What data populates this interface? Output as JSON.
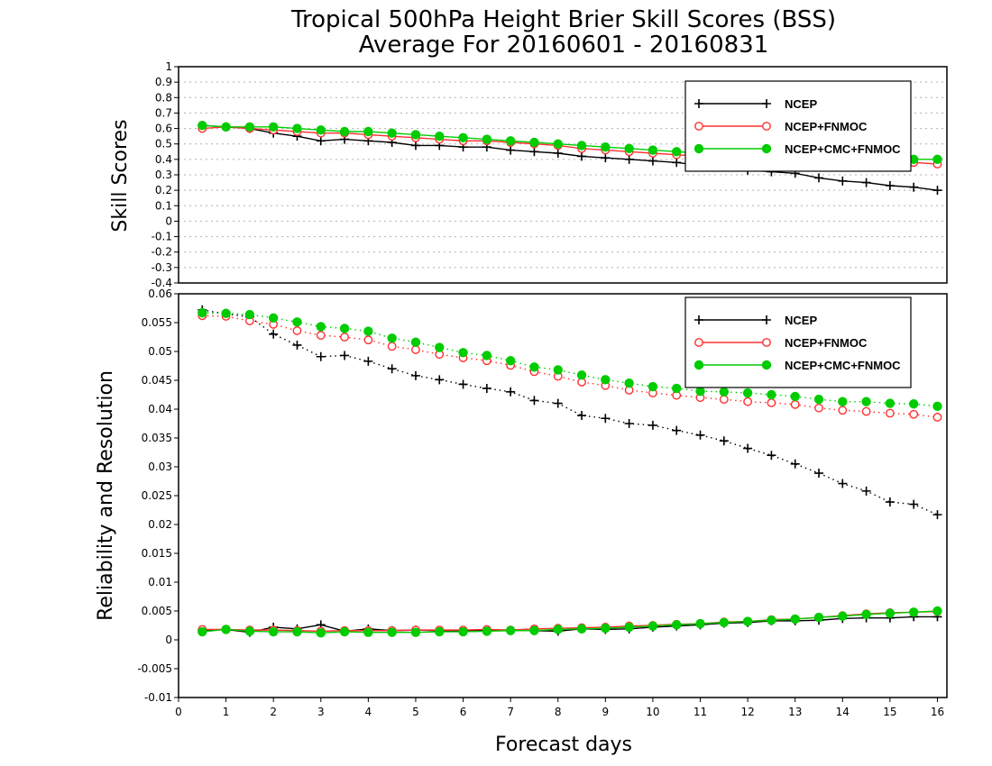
{
  "title_line1": "Tropical 500hPa Height Brier Skill Scores (BSS)",
  "title_line2": "Average For 20160601 - 20160831",
  "chart_data": [
    {
      "type": "line",
      "ylabel": "Skill Scores",
      "ylim": [
        -0.4,
        1.0
      ],
      "yticks": [
        "1",
        "0.9",
        "0.8",
        "0.7",
        "0.6",
        "0.5",
        "0.4",
        "0.3",
        "0.2",
        "0.1",
        "0",
        "-0.1",
        "-0.2",
        "-0.3",
        "-0.4"
      ],
      "xlim": [
        0,
        16.2
      ],
      "grid": true,
      "legend": "top-right",
      "x": [
        0.5,
        1,
        1.5,
        2,
        2.5,
        3,
        3.5,
        4,
        4.5,
        5,
        5.5,
        6,
        6.5,
        7,
        7.5,
        8,
        8.5,
        9,
        9.5,
        10,
        10.5,
        11,
        11.5,
        12,
        12.5,
        13,
        13.5,
        14,
        14.5,
        15,
        15.5,
        16
      ],
      "series": [
        {
          "name": "NCEP",
          "color": "#000000",
          "marker": "plus",
          "line": "solid",
          "values": [
            0.62,
            0.61,
            0.6,
            0.57,
            0.55,
            0.52,
            0.53,
            0.52,
            0.51,
            0.49,
            0.49,
            0.48,
            0.48,
            0.46,
            0.45,
            0.44,
            0.42,
            0.41,
            0.4,
            0.39,
            0.38,
            0.36,
            0.35,
            0.33,
            0.32,
            0.31,
            0.28,
            0.26,
            0.25,
            0.23,
            0.22,
            0.2
          ]
        },
        {
          "name": "NCEP+FNMOC",
          "color": "#ff3030",
          "marker": "open-circle",
          "line": "solid",
          "values": [
            0.6,
            0.61,
            0.6,
            0.59,
            0.58,
            0.57,
            0.57,
            0.56,
            0.55,
            0.54,
            0.53,
            0.52,
            0.52,
            0.51,
            0.5,
            0.49,
            0.47,
            0.46,
            0.45,
            0.44,
            0.43,
            0.42,
            0.42,
            0.41,
            0.41,
            0.4,
            0.4,
            0.39,
            0.39,
            0.38,
            0.38,
            0.37
          ]
        },
        {
          "name": "NCEP+CMC+FNMOC",
          "color": "#00cc00",
          "marker": "filled-circle",
          "line": "solid",
          "values": [
            0.62,
            0.61,
            0.61,
            0.61,
            0.6,
            0.59,
            0.58,
            0.58,
            0.57,
            0.56,
            0.55,
            0.54,
            0.53,
            0.52,
            0.51,
            0.5,
            0.49,
            0.48,
            0.47,
            0.46,
            0.45,
            0.44,
            0.44,
            0.43,
            0.43,
            0.42,
            0.42,
            0.41,
            0.41,
            0.4,
            0.4,
            0.4
          ]
        }
      ]
    },
    {
      "type": "line",
      "ylabel": "Reliability and Resolution",
      "xlabel": "Forecast days",
      "ylim": [
        -0.01,
        0.06
      ],
      "yticks": [
        "0.06",
        "0.055",
        "0.05",
        "0.045",
        "0.04",
        "0.035",
        "0.03",
        "0.025",
        "0.02",
        "0.015",
        "0.01",
        "0.005",
        "0",
        "-0.005",
        "-0.01"
      ],
      "xticks": [
        "0",
        "1",
        "2",
        "3",
        "4",
        "5",
        "6",
        "7",
        "8",
        "9",
        "10",
        "11",
        "12",
        "13",
        "14",
        "15",
        "16"
      ],
      "xlim": [
        0,
        16.2
      ],
      "grid": false,
      "legend": "top-right",
      "x": [
        0.5,
        1,
        1.5,
        2,
        2.5,
        3,
        3.5,
        4,
        4.5,
        5,
        5.5,
        6,
        6.5,
        7,
        7.5,
        8,
        8.5,
        9,
        9.5,
        10,
        10.5,
        11,
        11.5,
        12,
        12.5,
        13,
        13.5,
        14,
        14.5,
        15,
        15.5,
        16
      ],
      "legend_entries": [
        {
          "name": "NCEP",
          "color": "#000000",
          "marker": "plus"
        },
        {
          "name": "NCEP+FNMOC",
          "color": "#ff3030",
          "marker": "open-circle"
        },
        {
          "name": "NCEP+CMC+FNMOC",
          "color": "#00cc00",
          "marker": "filled-circle"
        }
      ],
      "series": [
        {
          "name": "NCEP",
          "metric": "resolution",
          "color": "#000000",
          "marker": "plus",
          "line": "dotted",
          "values": [
            0.0572,
            0.0565,
            0.056,
            0.053,
            0.0511,
            0.0491,
            0.0493,
            0.0483,
            0.047,
            0.0458,
            0.0451,
            0.0443,
            0.0436,
            0.043,
            0.0415,
            0.041,
            0.0389,
            0.0384,
            0.0375,
            0.0372,
            0.0363,
            0.0355,
            0.0345,
            0.0332,
            0.032,
            0.0305,
            0.0289,
            0.0271,
            0.0258,
            0.0239,
            0.0235,
            0.0217
          ]
        },
        {
          "name": "NCEP+FNMOC",
          "metric": "resolution",
          "color": "#ff3030",
          "marker": "open-circle",
          "line": "dotted",
          "values": [
            0.0562,
            0.0561,
            0.0553,
            0.0547,
            0.0536,
            0.0528,
            0.0525,
            0.052,
            0.0509,
            0.0503,
            0.0495,
            0.0489,
            0.0484,
            0.0476,
            0.0465,
            0.0457,
            0.0447,
            0.0441,
            0.0433,
            0.0428,
            0.0424,
            0.042,
            0.0417,
            0.0413,
            0.0411,
            0.0408,
            0.0402,
            0.0398,
            0.0396,
            0.0393,
            0.0391,
            0.0386
          ]
        },
        {
          "name": "NCEP+CMC+FNMOC",
          "metric": "resolution",
          "color": "#00cc00",
          "marker": "filled-circle",
          "line": "dotted",
          "values": [
            0.0567,
            0.0566,
            0.0564,
            0.0558,
            0.0551,
            0.0543,
            0.054,
            0.0535,
            0.0523,
            0.0516,
            0.0507,
            0.0498,
            0.0493,
            0.0484,
            0.0473,
            0.0468,
            0.0459,
            0.0451,
            0.0445,
            0.0439,
            0.0436,
            0.0431,
            0.043,
            0.0428,
            0.0425,
            0.0422,
            0.0417,
            0.0413,
            0.0413,
            0.041,
            0.0409,
            0.0405
          ]
        },
        {
          "name": "NCEP",
          "metric": "reliability",
          "color": "#000000",
          "marker": "plus",
          "line": "solid",
          "values": [
            0.0017,
            0.0018,
            0.0013,
            0.0022,
            0.0019,
            0.0026,
            0.0015,
            0.0019,
            0.0016,
            0.0017,
            0.0016,
            0.0016,
            0.0017,
            0.0016,
            0.0016,
            0.0015,
            0.0019,
            0.0018,
            0.0019,
            0.0022,
            0.0024,
            0.0026,
            0.0029,
            0.003,
            0.0033,
            0.0033,
            0.0034,
            0.0037,
            0.0038,
            0.0038,
            0.004,
            0.004
          ]
        },
        {
          "name": "NCEP+FNMOC",
          "metric": "reliability",
          "color": "#ff3030",
          "marker": "open-circle",
          "line": "solid",
          "values": [
            0.0018,
            0.0018,
            0.0017,
            0.0017,
            0.0016,
            0.0015,
            0.0016,
            0.0016,
            0.0016,
            0.0017,
            0.0017,
            0.0017,
            0.0018,
            0.0017,
            0.0019,
            0.002,
            0.0021,
            0.0022,
            0.0024,
            0.0025,
            0.0027,
            0.0028,
            0.0031,
            0.0032,
            0.0035,
            0.0036,
            0.0039,
            0.0042,
            0.0045,
            0.0047,
            0.0048,
            0.0049
          ]
        },
        {
          "name": "NCEP+CMC+FNMOC",
          "metric": "reliability",
          "color": "#00cc00",
          "marker": "filled-circle",
          "line": "solid",
          "values": [
            0.0014,
            0.0018,
            0.0015,
            0.0014,
            0.0014,
            0.0012,
            0.0014,
            0.0013,
            0.0013,
            0.0013,
            0.0014,
            0.0014,
            0.0015,
            0.0016,
            0.0016,
            0.0018,
            0.0019,
            0.002,
            0.0022,
            0.0024,
            0.0026,
            0.0028,
            0.003,
            0.0032,
            0.0034,
            0.0036,
            0.0039,
            0.0041,
            0.0044,
            0.0046,
            0.0048,
            0.005
          ]
        }
      ]
    }
  ]
}
